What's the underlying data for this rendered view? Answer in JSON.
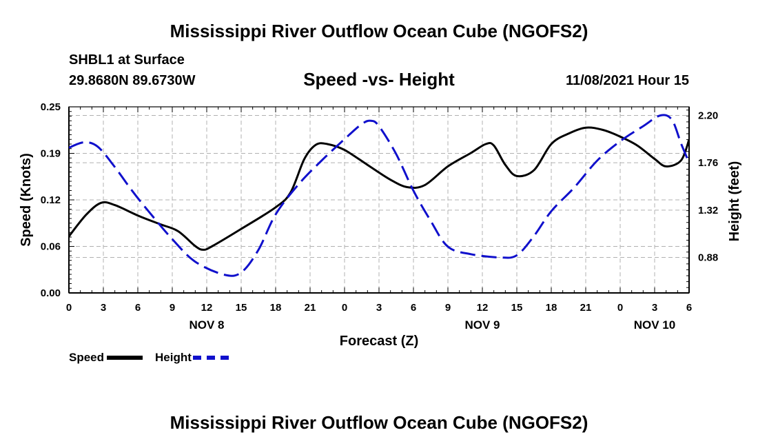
{
  "header": {
    "title": "Mississippi River Outflow Ocean Cube (NGOFS2)",
    "station": "SHBL1 at Surface",
    "coords": "29.8680N  89.6730W",
    "subtitle": "Speed -vs- Height",
    "datetime": "11/08/2021 Hour 15"
  },
  "footer": {
    "title": "Mississippi River Outflow Ocean Cube (NGOFS2)"
  },
  "legend": {
    "speed_label": "Speed",
    "height_label": "Height"
  },
  "colors": {
    "speed": "#000000",
    "height": "#1010cc",
    "grid": "#b0b0b0"
  },
  "chart_data": {
    "type": "line",
    "title": "Speed -vs- Height",
    "xlabel": "Forecast (Z)",
    "ylabel": "Speed (Knots)",
    "y2label": "Height (feet)",
    "xlim": [
      0,
      54
    ],
    "ylim": [
      0,
      0.25
    ],
    "y2lim": [
      0.55,
      2.28
    ],
    "yticks": [
      "0.00",
      "0.06",
      "0.12",
      "0.19",
      "0.25"
    ],
    "yticks_values": [
      0,
      0.0625,
      0.125,
      0.1875,
      0.25
    ],
    "y2ticks": [
      "0.88",
      "1.32",
      "1.76",
      "2.20"
    ],
    "y2ticks_values": [
      0.88,
      1.32,
      1.76,
      2.2
    ],
    "xtick_labels": [
      "0",
      "3",
      "6",
      "9",
      "12",
      "15",
      "18",
      "21",
      "0",
      "3",
      "6",
      "9",
      "12",
      "15",
      "18",
      "21",
      "0",
      "3",
      "6"
    ],
    "day_labels": [
      {
        "label": "NOV 8",
        "hour": 12
      },
      {
        "label": "NOV 9",
        "hour": 36
      },
      {
        "label": "NOV 10",
        "hour": 51
      }
    ],
    "grid": true,
    "series": [
      {
        "name": "Speed",
        "axis": "left",
        "x": [
          0,
          1.5,
          2.8,
          4,
          6,
          8,
          9.5,
          11,
          11.7,
          12.5,
          15,
          18,
          19.3,
          20.5,
          21.5,
          22.5,
          24,
          26,
          28,
          29.5,
          31,
          33,
          35,
          36.3,
          37,
          38,
          39,
          40.5,
          42,
          43.5,
          45,
          46.5,
          48,
          49.5,
          51,
          52,
          53.3,
          54
        ],
        "values": [
          0.076,
          0.105,
          0.121,
          0.118,
          0.104,
          0.092,
          0.083,
          0.063,
          0.058,
          0.063,
          0.086,
          0.115,
          0.135,
          0.18,
          0.199,
          0.2,
          0.192,
          0.172,
          0.152,
          0.142,
          0.145,
          0.17,
          0.188,
          0.2,
          0.198,
          0.172,
          0.157,
          0.165,
          0.2,
          0.214,
          0.222,
          0.219,
          0.21,
          0.198,
          0.18,
          0.17,
          0.178,
          0.206
        ]
      },
      {
        "name": "Height",
        "axis": "right",
        "x": [
          0,
          1.3,
          2.5,
          4,
          5.5,
          7,
          9,
          11,
          13.5,
          15,
          16.5,
          18,
          20,
          22,
          24,
          25.5,
          26.3,
          27,
          28.5,
          30,
          31.5,
          33,
          35,
          37.5,
          39,
          40.5,
          42,
          44,
          46,
          48,
          50,
          51.5,
          52.5,
          53.3,
          54
        ],
        "values": [
          1.9,
          1.95,
          1.91,
          1.72,
          1.5,
          1.3,
          1.05,
          0.84,
          0.72,
          0.74,
          0.95,
          1.28,
          1.56,
          1.78,
          1.98,
          2.12,
          2.15,
          2.1,
          1.84,
          1.5,
          1.22,
          0.98,
          0.91,
          0.88,
          0.9,
          1.08,
          1.31,
          1.53,
          1.78,
          1.96,
          2.1,
          2.2,
          2.16,
          1.94,
          1.76
        ]
      }
    ]
  }
}
